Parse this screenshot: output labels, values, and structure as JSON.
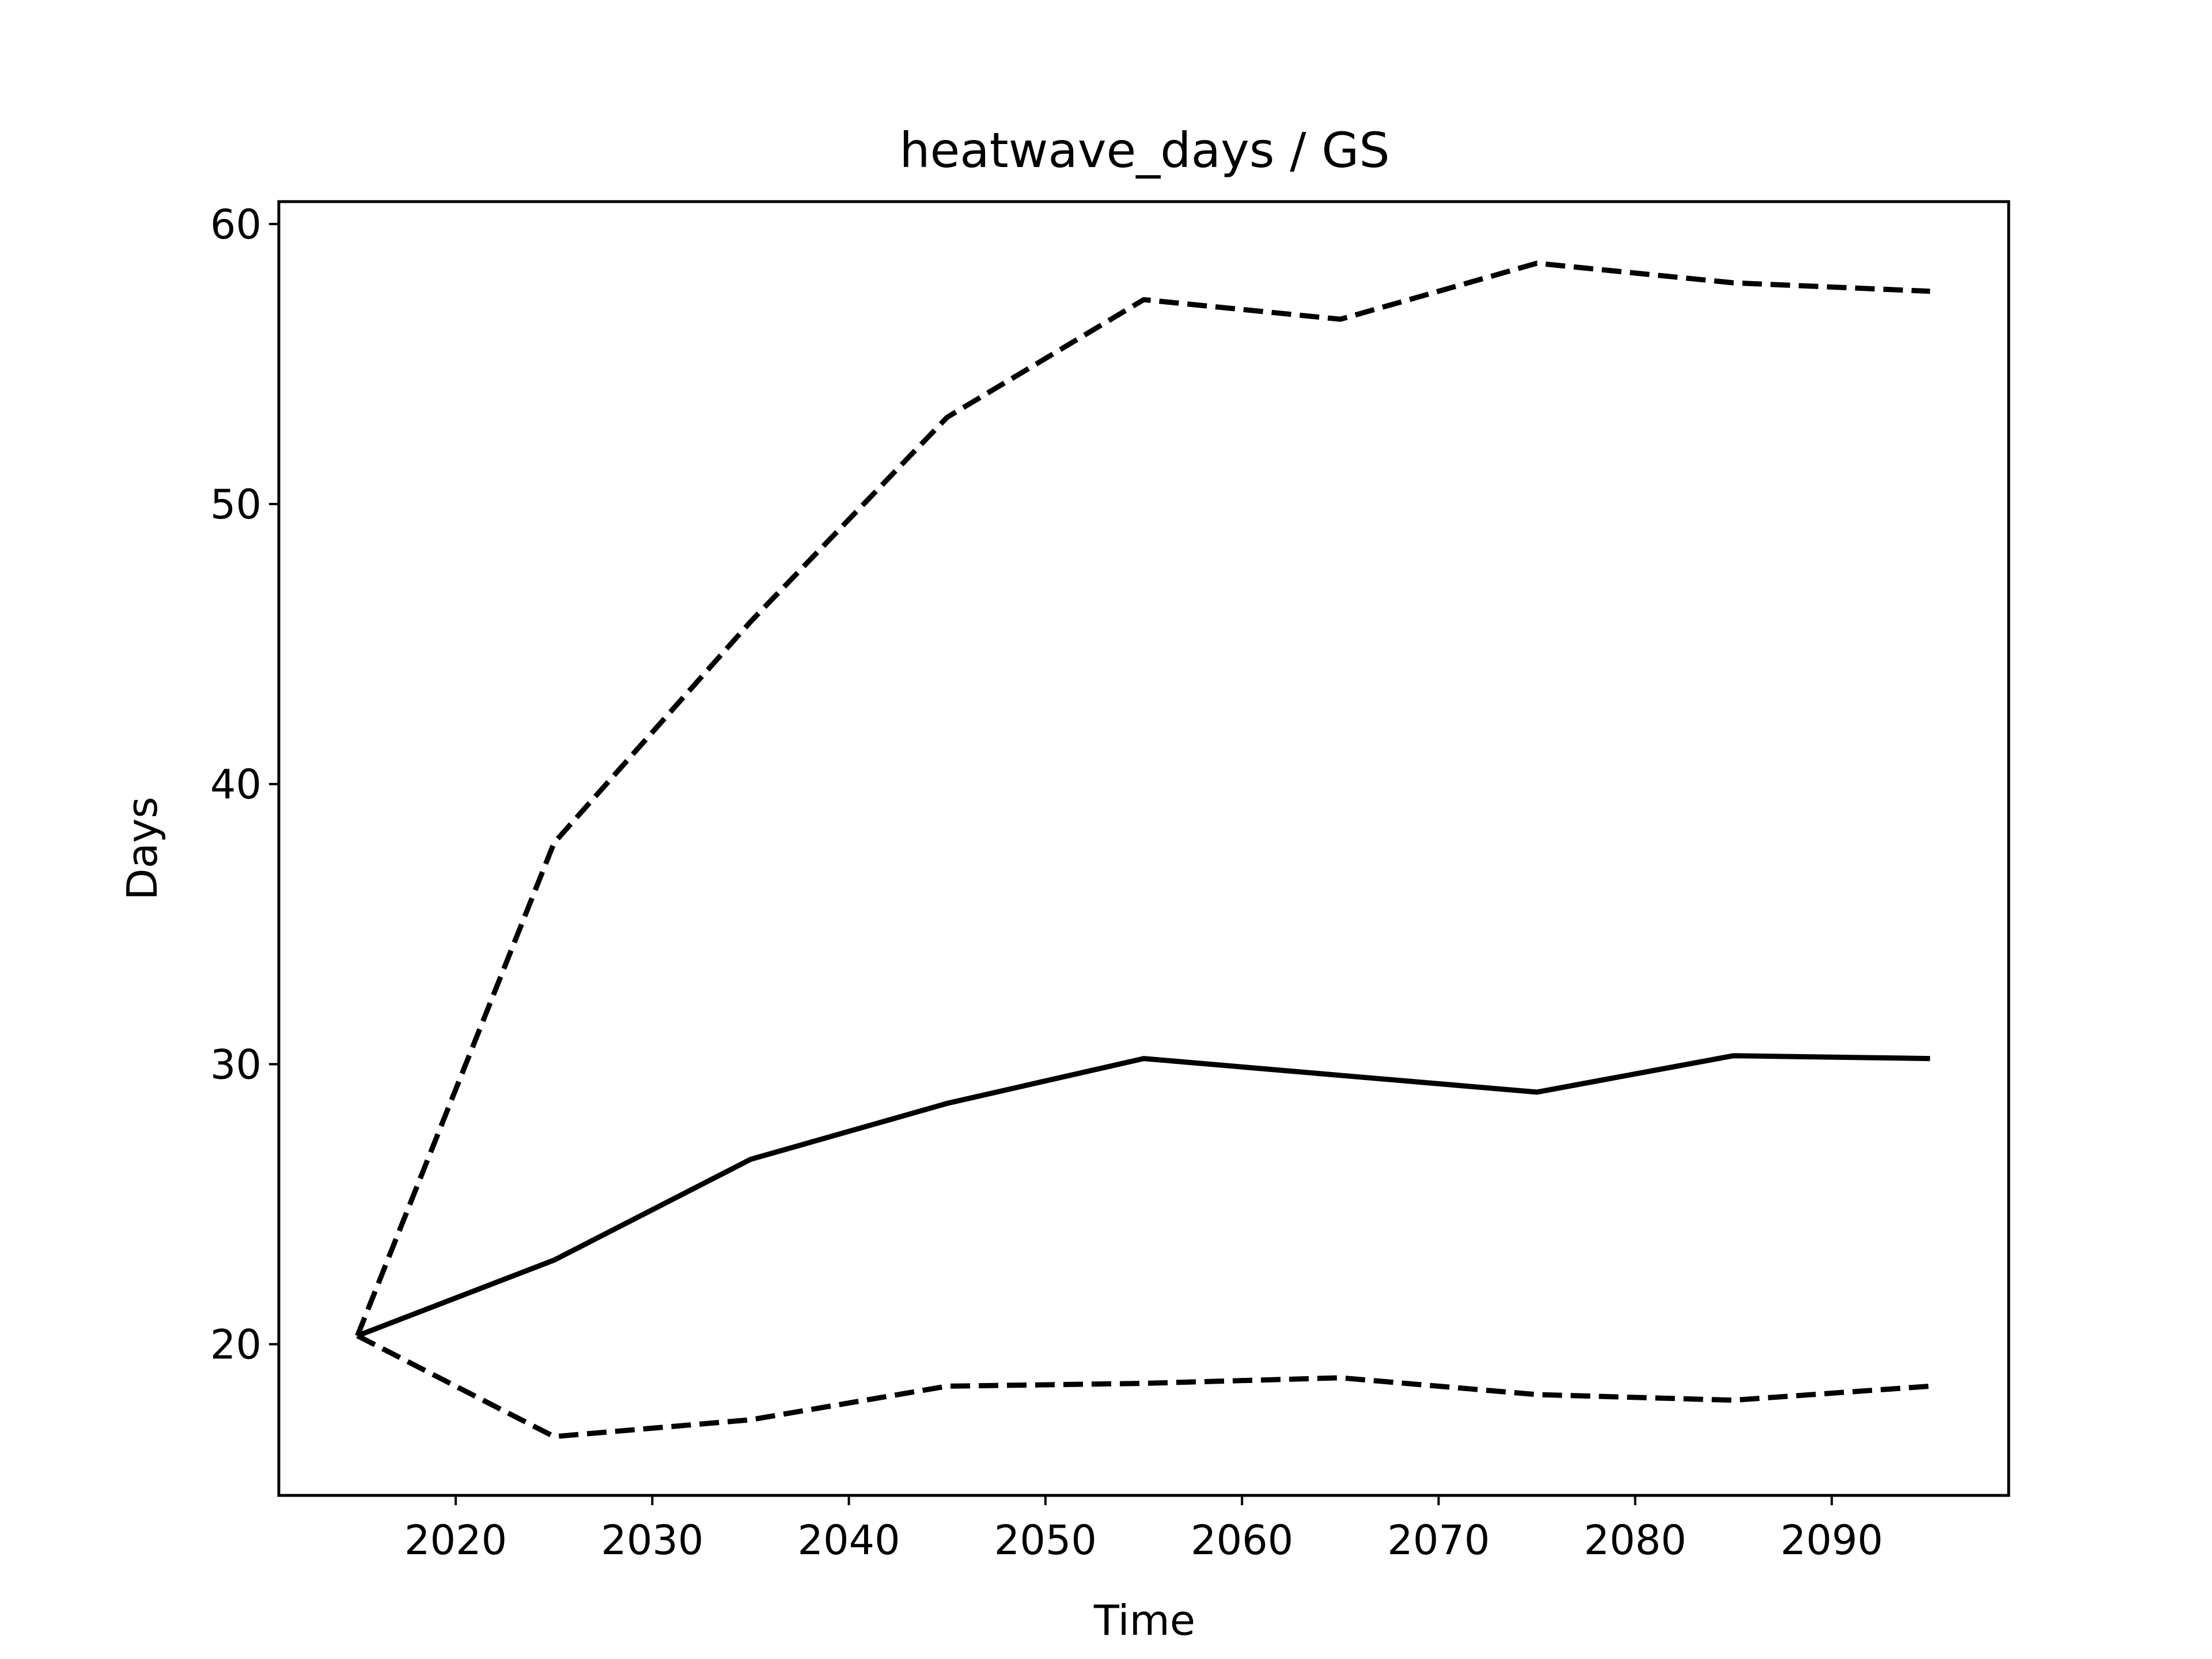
{
  "chart_data": {
    "type": "line",
    "title": "heatwave_days / GS",
    "xlabel": "Time",
    "ylabel": "Days",
    "xlim": [
      2011,
      2099
    ],
    "ylim": [
      14.6,
      60.8
    ],
    "xticks": [
      2020,
      2030,
      2040,
      2050,
      2060,
      2070,
      2080,
      2090
    ],
    "yticks": [
      20,
      30,
      40,
      50,
      60
    ],
    "grid": false,
    "legend": "none",
    "x": [
      2015,
      2025,
      2035,
      2045,
      2055,
      2065,
      2075,
      2085,
      2095
    ],
    "series": [
      {
        "style": "dashed",
        "color": "#000000",
        "values": [
          20.3,
          37.9,
          45.8,
          53.1,
          57.3,
          56.6,
          58.6,
          57.9,
          57.6
        ]
      },
      {
        "style": "solid",
        "color": "#000000",
        "values": [
          20.3,
          23.0,
          26.6,
          28.6,
          30.2,
          29.6,
          29.0,
          30.3,
          30.2
        ]
      },
      {
        "style": "dashed",
        "color": "#000000",
        "values": [
          20.3,
          16.7,
          17.3,
          18.5,
          18.6,
          18.8,
          18.2,
          18.0,
          18.5
        ]
      }
    ]
  }
}
